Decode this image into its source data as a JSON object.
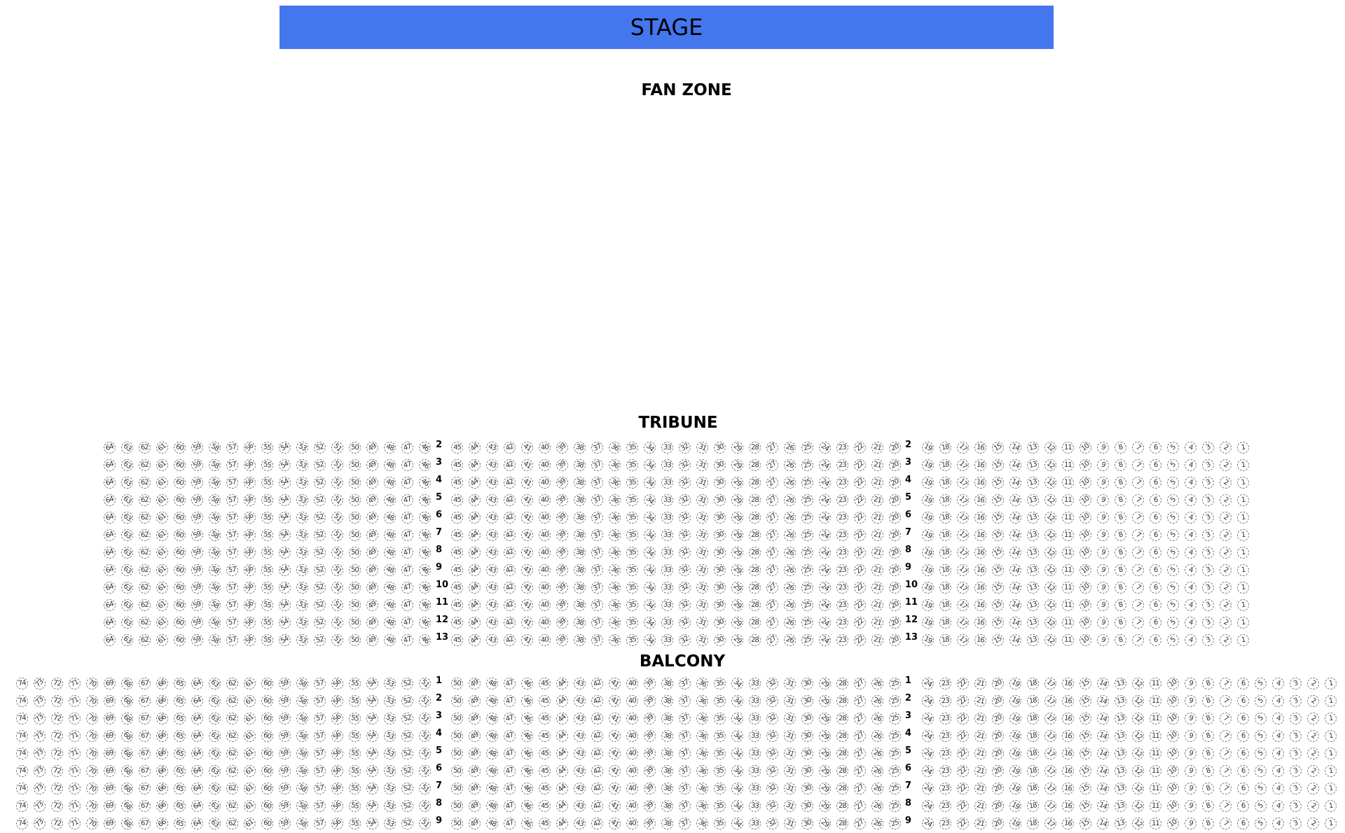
{
  "stage": {
    "label": "STAGE",
    "color": "#4476ee"
  },
  "fan_zone": {
    "label": "FAN ZONE"
  },
  "sections": [
    {
      "name": "tribune",
      "label": "TRIBUNE",
      "rows": [
        2,
        3,
        4,
        5,
        6,
        7,
        8,
        9,
        10,
        11,
        12,
        13
      ],
      "blocks": [
        {
          "from": 64,
          "to": 46
        },
        {
          "from": 45,
          "to": 20
        },
        {
          "from": 19,
          "to": 1
        }
      ]
    },
    {
      "name": "balcony",
      "label": "BALCONY",
      "rows": [
        1,
        2,
        3,
        4,
        5,
        6,
        7,
        8,
        9
      ],
      "blocks": [
        {
          "from": 74,
          "to": 51
        },
        {
          "from": 50,
          "to": 25
        },
        {
          "from": 24,
          "to": 1
        }
      ]
    }
  ]
}
